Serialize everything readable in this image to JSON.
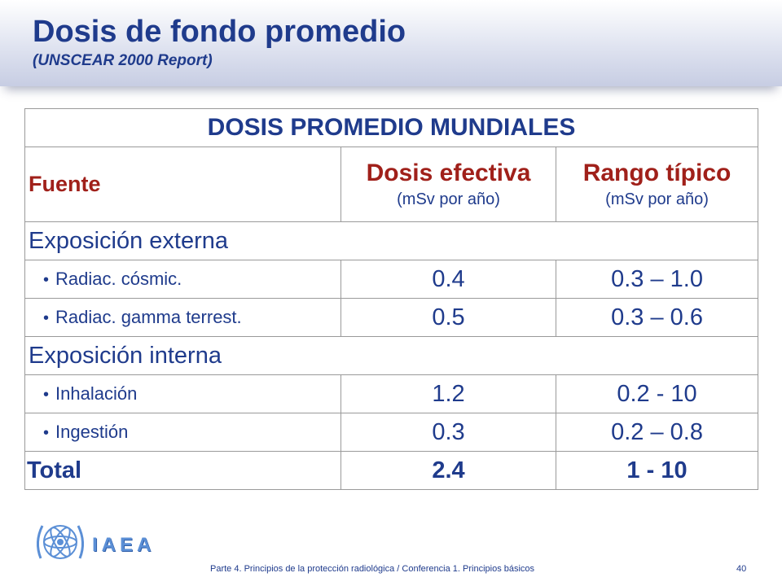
{
  "slide": {
    "title": "Dosis de fondo promedio",
    "subtitle": "(UNSCEAR 2000 Report)"
  },
  "table": {
    "main_header": "DOSIS PROMEDIO MUNDIALES",
    "col_source": "Fuente",
    "col_dose_title": "Dosis efectiva",
    "col_dose_unit": "(mSv por año)",
    "col_range_title": "Rango típico",
    "col_range_unit": "(mSv por año)",
    "groups": [
      {
        "label": "Exposición externa",
        "rows": [
          {
            "label": "Radiac. cósmic.",
            "dose": "0.4",
            "range": "0.3 – 1.0"
          },
          {
            "label": "Radiac. gamma terrest.",
            "dose": "0.5",
            "range": "0.3 – 0.6"
          }
        ]
      },
      {
        "label": "Exposición interna",
        "rows": [
          {
            "label": "Inhalación",
            "dose": "1.2",
            "range": "0.2 - 10"
          },
          {
            "label": "Ingestión",
            "dose": "0.3",
            "range": "0.2 – 0.8"
          }
        ]
      }
    ],
    "total": {
      "label": "Total",
      "dose": "2.4",
      "range": "1 - 10"
    }
  },
  "logo": {
    "text": "IAEA",
    "icon": "iaea-emblem-icon"
  },
  "footer": {
    "text": "Parte 4. Principios de la protección radiológica / Conferencia 1. Principios básicos",
    "page_number": "40"
  },
  "colors": {
    "title_blue": "#1f3b8c",
    "header_red": "#a0201a",
    "logo_blue": "#5b8fd6"
  }
}
